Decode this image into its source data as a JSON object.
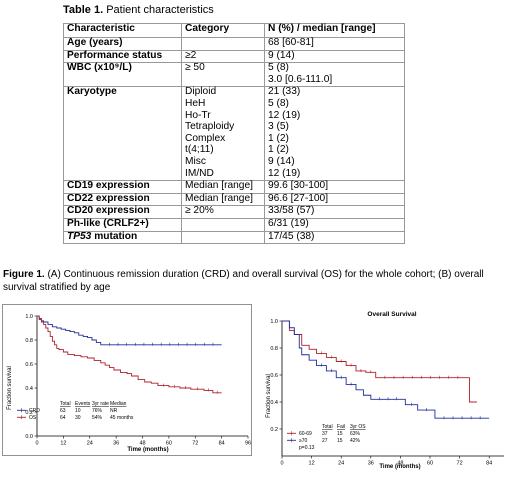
{
  "table": {
    "caption_bold": "Table 1.",
    "caption_text": " Patient characteristics",
    "headers": [
      "Characteristic",
      "Category",
      "N (%) / median [range]"
    ],
    "rows": [
      {
        "characteristic": "Age (years)",
        "category": [
          ""
        ],
        "value": [
          "68 [60-81]"
        ]
      },
      {
        "characteristic": "Performance status",
        "category": [
          "≥2"
        ],
        "value": [
          "9 (14)"
        ]
      },
      {
        "characteristic": "WBC (x10⁹/L)",
        "category": [
          "≥ 50",
          ""
        ],
        "value": [
          "5 (8)",
          "3.0 [0.6-111.0]"
        ]
      },
      {
        "characteristic": "Karyotype",
        "category": [
          "Diploid",
          "HeH",
          "Ho-Tr",
          "Tetraploidy",
          "Complex",
          "t(4;11)",
          "Misc",
          "IM/ND"
        ],
        "value": [
          "21 (33)",
          "5 (8)",
          "12 (19)",
          "3 (5)",
          "1 (2)",
          "1 (2)",
          "9 (14)",
          "12 (19)"
        ]
      },
      {
        "characteristic": "CD19 expression",
        "category": [
          "Median [range]"
        ],
        "value": [
          "99.6 [30-100]"
        ]
      },
      {
        "characteristic": "CD22 expression",
        "category": [
          "Median [range]"
        ],
        "value": [
          "96.6 [27-100]"
        ]
      },
      {
        "characteristic": "CD20 expression",
        "category": [
          "≥ 20%"
        ],
        "value": [
          "33/58 (57)"
        ]
      },
      {
        "characteristic": "Ph-like (CRLF2+)",
        "category": [
          ""
        ],
        "value": [
          "6/31 (19)"
        ]
      },
      {
        "characteristic_italic": "TP53",
        "characteristic": " mutation",
        "category": [
          ""
        ],
        "value": [
          "17/45 (38)"
        ]
      }
    ]
  },
  "figure": {
    "caption_bold": "Figure 1.",
    "caption_text": " (A) Continuous remission duration (CRD) and overall survival (OS) for the whole cohort; (B) overall survival stratified by age"
  },
  "chart_data": [
    {
      "type": "line",
      "subtype": "kaplan-meier",
      "title": "",
      "xlabel": "Time (months)",
      "ylabel": "Fraction survival",
      "xlim": [
        0,
        96
      ],
      "ylim": [
        0,
        1.0
      ],
      "x_ticks": [
        0,
        12,
        24,
        36,
        48,
        60,
        72,
        84,
        96
      ],
      "y_ticks": [
        0.0,
        0.2,
        0.4,
        0.6,
        0.8,
        1.0
      ],
      "legend_position": "bottom-left",
      "legend_headers": [
        "Total",
        "Events",
        "3yr rate",
        "Median"
      ],
      "series": [
        {
          "name": "CRD",
          "color": "#1f2f9a",
          "legend_values": [
            "63",
            "10",
            "76%",
            "NR"
          ],
          "points": [
            [
              0,
              1.0
            ],
            [
              1,
              0.98
            ],
            [
              2,
              0.96
            ],
            [
              3,
              0.95
            ],
            [
              5,
              0.93
            ],
            [
              7,
              0.91
            ],
            [
              9,
              0.9
            ],
            [
              11,
              0.89
            ],
            [
              13,
              0.88
            ],
            [
              15,
              0.87
            ],
            [
              17,
              0.86
            ],
            [
              19,
              0.84
            ],
            [
              21,
              0.83
            ],
            [
              23,
              0.82
            ],
            [
              25,
              0.8
            ],
            [
              27,
              0.78
            ],
            [
              29,
              0.76
            ],
            [
              84,
              0.76
            ]
          ]
        },
        {
          "name": "OS",
          "color": "#b0202a",
          "legend_values": [
            "64",
            "30",
            "54%",
            "45 months"
          ],
          "points": [
            [
              0,
              1.0
            ],
            [
              1,
              0.97
            ],
            [
              2,
              0.95
            ],
            [
              3,
              0.93
            ],
            [
              4,
              0.9
            ],
            [
              5,
              0.87
            ],
            [
              6,
              0.83
            ],
            [
              7,
              0.79
            ],
            [
              8,
              0.76
            ],
            [
              9,
              0.73
            ],
            [
              10,
              0.72
            ],
            [
              12,
              0.7
            ],
            [
              14,
              0.68
            ],
            [
              17,
              0.67
            ],
            [
              20,
              0.66
            ],
            [
              23,
              0.65
            ],
            [
              26,
              0.63
            ],
            [
              29,
              0.61
            ],
            [
              31,
              0.59
            ],
            [
              33,
              0.57
            ],
            [
              35,
              0.55
            ],
            [
              38,
              0.53
            ],
            [
              41,
              0.52
            ],
            [
              43,
              0.5
            ],
            [
              46,
              0.47
            ],
            [
              49,
              0.45
            ],
            [
              52,
              0.44
            ],
            [
              55,
              0.42
            ],
            [
              60,
              0.41
            ],
            [
              65,
              0.4
            ],
            [
              70,
              0.39
            ],
            [
              76,
              0.38
            ],
            [
              80,
              0.36
            ],
            [
              84,
              0.36
            ]
          ]
        }
      ]
    },
    {
      "type": "line",
      "subtype": "kaplan-meier",
      "title": "Overall Survival",
      "xlabel": "Time (months)",
      "ylabel": "Fraction survival",
      "xlim": [
        0,
        90
      ],
      "ylim": [
        0,
        1.0
      ],
      "x_ticks": [
        0,
        12,
        24,
        36,
        48,
        60,
        72,
        84
      ],
      "y_ticks": [
        0.2,
        0.4,
        0.6,
        0.8,
        1.0
      ],
      "legend_position": "bottom-left",
      "legend_headers": [
        "Total",
        "Fail",
        "3yr OS"
      ],
      "annotation": "p=0.13",
      "series": [
        {
          "name": "60-69",
          "color": "#b0202a",
          "legend_values": [
            "37",
            "15",
            "63%"
          ],
          "points": [
            [
              0,
              1.0
            ],
            [
              3,
              0.93
            ],
            [
              5,
              0.9
            ],
            [
              8,
              0.82
            ],
            [
              11,
              0.79
            ],
            [
              14,
              0.76
            ],
            [
              18,
              0.73
            ],
            [
              22,
              0.7
            ],
            [
              26,
              0.67
            ],
            [
              30,
              0.63
            ],
            [
              34,
              0.62
            ],
            [
              38,
              0.58
            ],
            [
              75,
              0.58
            ],
            [
              76,
              0.4
            ],
            [
              79,
              0.4
            ]
          ]
        },
        {
          "name": "≥70",
          "color": "#1f2f9a",
          "legend_values": [
            "27",
            "15",
            "42%"
          ],
          "points": [
            [
              0,
              1.0
            ],
            [
              3,
              0.95
            ],
            [
              5,
              0.9
            ],
            [
              7,
              0.8
            ],
            [
              8,
              0.75
            ],
            [
              11,
              0.71
            ],
            [
              14,
              0.67
            ],
            [
              18,
              0.63
            ],
            [
              22,
              0.58
            ],
            [
              26,
              0.53
            ],
            [
              30,
              0.49
            ],
            [
              33,
              0.45
            ],
            [
              36,
              0.42
            ],
            [
              50,
              0.38
            ],
            [
              55,
              0.34
            ],
            [
              62,
              0.28
            ],
            [
              84,
              0.28
            ]
          ]
        }
      ]
    }
  ]
}
